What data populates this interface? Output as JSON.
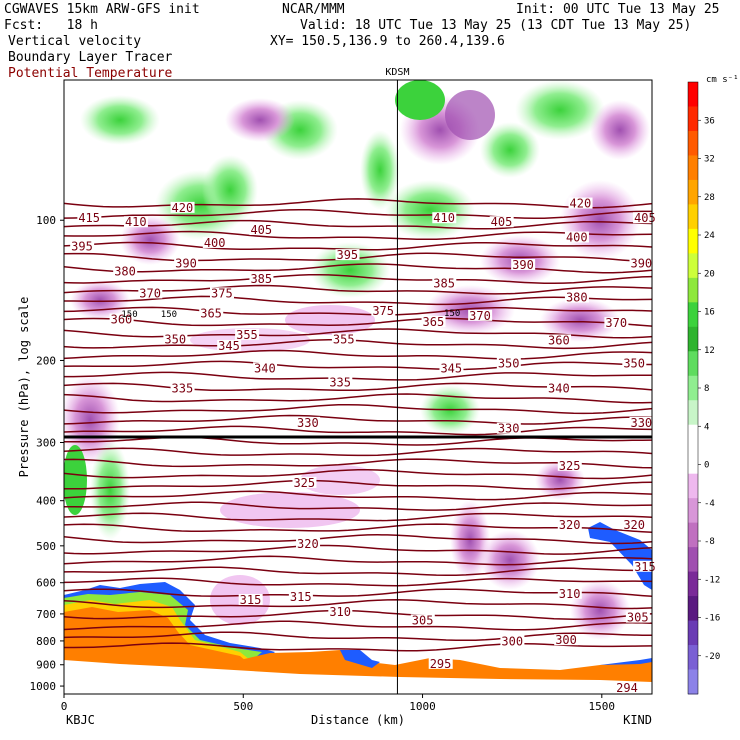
{
  "header": {
    "model_line": "CGWAVES 15km ARW-GFS init",
    "fcst_line": "Fcst:   18 h",
    "org": "NCAR/MMM",
    "init": "Init: 00 UTC Tue 13 May 25",
    "valid": "Valid: 18 UTC Tue 13 May 25 (13 CDT Tue 13 May 25)",
    "xy": "XY= 150.5,136.9 to 260.4,139.6",
    "field1": "Vertical velocity",
    "field2": "Boundary Layer Tracer",
    "field3": "Potential Temperature"
  },
  "chart_data": {
    "type": "contour-cross-section",
    "ylabel": "Pressure (hPa), log scale",
    "xlabel": "Distance (km)",
    "x_ticks": [
      "0",
      "500",
      "1000",
      "1500"
    ],
    "y_ticks": [
      "100",
      "200",
      "300",
      "400",
      "500",
      "600",
      "700",
      "800",
      "900",
      "1000"
    ],
    "xlim": [
      0,
      1640
    ],
    "ylim": [
      1040,
      50
    ],
    "y_scale": "log",
    "left_station": "KBJC",
    "right_station": "KIND",
    "mid_station": "KDSM",
    "mid_station_km": 930,
    "colorbar": {
      "units": "cm s⁻¹",
      "labels": [
        "36",
        "32",
        "28",
        "24",
        "20",
        "16",
        "12",
        "8",
        "4",
        "0",
        "-4",
        "-8",
        "-12",
        "-16",
        "-20"
      ],
      "colors": [
        "#ff0000",
        "#ff2a00",
        "#ff5a00",
        "#ff7f00",
        "#ffa500",
        "#ffd000",
        "#ffff00",
        "#cdff3a",
        "#8ee83c",
        "#3cd23c",
        "#2fb42f",
        "#5fdc5f",
        "#90ee90",
        "#c8f5c8",
        "#ffffff",
        "#ffffff",
        "#eeb8ee",
        "#d896d8",
        "#c070c0",
        "#a050b0",
        "#7a2a98",
        "#5a1a80",
        "#6a3cb4",
        "#7a60d4",
        "#8c82e8"
      ]
    },
    "theta_labels": [
      {
        "v": "415",
        "x": 40,
        "p": 100
      },
      {
        "v": "410",
        "x": 170,
        "p": 102
      },
      {
        "v": "420",
        "x": 300,
        "p": 95
      },
      {
        "v": "395",
        "x": 20,
        "p": 115
      },
      {
        "v": "380",
        "x": 140,
        "p": 130
      },
      {
        "v": "390",
        "x": 310,
        "p": 125
      },
      {
        "v": "400",
        "x": 390,
        "p": 113
      },
      {
        "v": "405",
        "x": 520,
        "p": 106
      },
      {
        "v": "375",
        "x": 410,
        "p": 145
      },
      {
        "v": "370",
        "x": 210,
        "p": 145
      },
      {
        "v": "385",
        "x": 520,
        "p": 135
      },
      {
        "v": "395",
        "x": 760,
        "p": 120
      },
      {
        "v": "360",
        "x": 130,
        "p": 165
      },
      {
        "v": "365",
        "x": 380,
        "p": 160
      },
      {
        "v": "355",
        "x": 480,
        "p": 178
      },
      {
        "v": "350",
        "x": 280,
        "p": 182
      },
      {
        "v": "345",
        "x": 430,
        "p": 188
      },
      {
        "v": "340",
        "x": 530,
        "p": 210
      },
      {
        "v": "335",
        "x": 300,
        "p": 232
      },
      {
        "v": "335",
        "x": 740,
        "p": 225
      },
      {
        "v": "355",
        "x": 750,
        "p": 182
      },
      {
        "v": "330",
        "x": 650,
        "p": 275
      },
      {
        "v": "325",
        "x": 640,
        "p": 370
      },
      {
        "v": "320",
        "x": 650,
        "p": 500
      },
      {
        "v": "315",
        "x": 490,
        "p": 660
      },
      {
        "v": "315",
        "x": 630,
        "p": 650
      },
      {
        "v": "310",
        "x": 740,
        "p": 700
      },
      {
        "v": "375",
        "x": 860,
        "p": 158
      },
      {
        "v": "410",
        "x": 1030,
        "p": 100
      },
      {
        "v": "405",
        "x": 1190,
        "p": 102
      },
      {
        "v": "420",
        "x": 1410,
        "p": 93
      },
      {
        "v": "405",
        "x": 1590,
        "p": 100
      },
      {
        "v": "400",
        "x": 1400,
        "p": 110
      },
      {
        "v": "385",
        "x": 1030,
        "p": 138
      },
      {
        "v": "390",
        "x": 1250,
        "p": 126
      },
      {
        "v": "390",
        "x": 1580,
        "p": 125
      },
      {
        "v": "380",
        "x": 1400,
        "p": 148
      },
      {
        "v": "365",
        "x": 1000,
        "p": 167
      },
      {
        "v": "370",
        "x": 1130,
        "p": 162
      },
      {
        "v": "370",
        "x": 1510,
        "p": 168
      },
      {
        "v": "360",
        "x": 1350,
        "p": 183
      },
      {
        "v": "345",
        "x": 1050,
        "p": 210
      },
      {
        "v": "350",
        "x": 1210,
        "p": 205
      },
      {
        "v": "350",
        "x": 1560,
        "p": 205
      },
      {
        "v": "340",
        "x": 1350,
        "p": 232
      },
      {
        "v": "330",
        "x": 1580,
        "p": 275
      },
      {
        "v": "330",
        "x": 1210,
        "p": 283
      },
      {
        "v": "325",
        "x": 1380,
        "p": 340
      },
      {
        "v": "320",
        "x": 1380,
        "p": 455
      },
      {
        "v": "320",
        "x": 1560,
        "p": 455
      },
      {
        "v": "315",
        "x": 1590,
        "p": 560
      },
      {
        "v": "310",
        "x": 1380,
        "p": 640
      },
      {
        "v": "305",
        "x": 1570,
        "p": 720
      },
      {
        "v": "305",
        "x": 970,
        "p": 730
      },
      {
        "v": "300",
        "x": 1220,
        "p": 810
      },
      {
        "v": "300",
        "x": 1370,
        "p": 805
      },
      {
        "v": "295",
        "x": 1020,
        "p": 905
      },
      {
        "v": "294",
        "x": 1540,
        "p": 1020
      }
    ],
    "tracer_labels": [
      {
        "v": "150",
        "x": 160,
        "p": 159
      },
      {
        "v": "150",
        "x": 270,
        "p": 159
      },
      {
        "v": "150",
        "x": 1060,
        "p": 158
      }
    ]
  }
}
